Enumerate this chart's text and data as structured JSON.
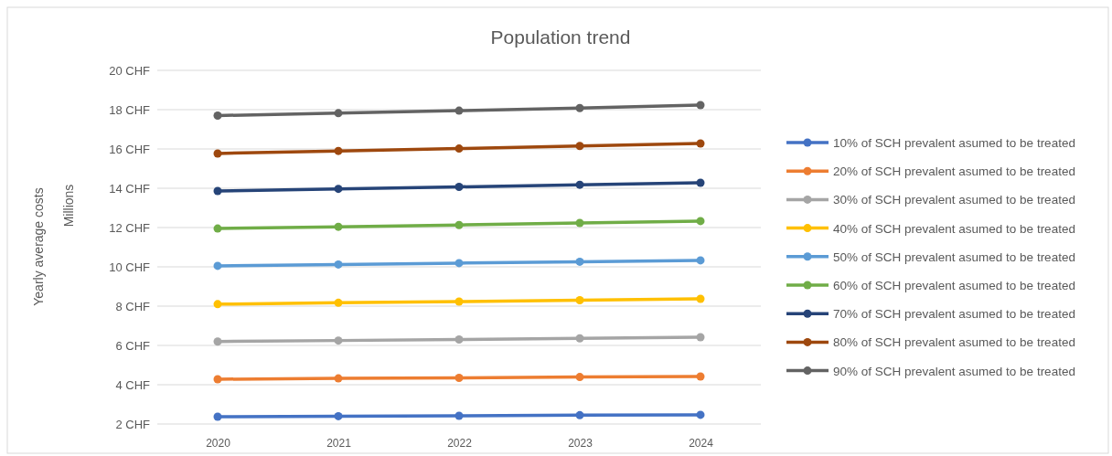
{
  "chart_data": {
    "type": "line",
    "title": "Population trend",
    "ylabel": "Yearly average costs",
    "annotations": [
      "Millions"
    ],
    "categories": [
      "2020",
      "2021",
      "2022",
      "2023",
      "2024"
    ],
    "ylim": [
      2,
      20
    ],
    "yticks": [
      {
        "value": 2,
        "label": "2 CHF"
      },
      {
        "value": 4,
        "label": "4 CHF"
      },
      {
        "value": 6,
        "label": "6 CHF"
      },
      {
        "value": 8,
        "label": "8 CHF"
      },
      {
        "value": 10,
        "label": "10 CHF"
      },
      {
        "value": 12,
        "label": "12 CHF"
      },
      {
        "value": 14,
        "label": "14 CHF"
      },
      {
        "value": 16,
        "label": "16 CHF"
      },
      {
        "value": 18,
        "label": "18 CHF"
      },
      {
        "value": 20,
        "label": "20 CHF"
      }
    ],
    "grid": "y",
    "legend": "right",
    "marker": "circle",
    "line_style": "solid",
    "series": [
      {
        "name": "10% of SCH prevalent asumed to be treated",
        "color": "#4472c4",
        "values": [
          2.37,
          2.4,
          2.42,
          2.45,
          2.47
        ]
      },
      {
        "name": "20% of SCH prevalent asumed to be treated",
        "color": "#ed7d31",
        "values": [
          4.28,
          4.32,
          4.35,
          4.39,
          4.42
        ]
      },
      {
        "name": "30% of SCH prevalent asumed to be treated",
        "color": "#a5a5a5",
        "values": [
          6.2,
          6.25,
          6.3,
          6.36,
          6.42
        ]
      },
      {
        "name": "40% of SCH prevalent asumed to be treated",
        "color": "#ffc000",
        "values": [
          8.1,
          8.17,
          8.23,
          8.3,
          8.37
        ]
      },
      {
        "name": "50% of SCH prevalent asumed to be treated",
        "color": "#5b9bd5",
        "values": [
          10.05,
          10.12,
          10.19,
          10.26,
          10.33
        ]
      },
      {
        "name": "60% of SCH prevalent asumed to be treated",
        "color": "#70ad47",
        "values": [
          11.95,
          12.04,
          12.13,
          12.23,
          12.33
        ]
      },
      {
        "name": "70% of SCH prevalent asumed to be treated",
        "color": "#264478",
        "values": [
          13.86,
          13.97,
          14.07,
          14.18,
          14.28
        ]
      },
      {
        "name": "80% of SCH prevalent asumed to be treated",
        "color": "#9e480e",
        "values": [
          15.77,
          15.9,
          16.02,
          16.15,
          16.28
        ]
      },
      {
        "name": "90% of SCH prevalent asumed to be treated",
        "color": "#636363",
        "values": [
          17.7,
          17.82,
          17.95,
          18.08,
          18.23
        ]
      }
    ]
  }
}
